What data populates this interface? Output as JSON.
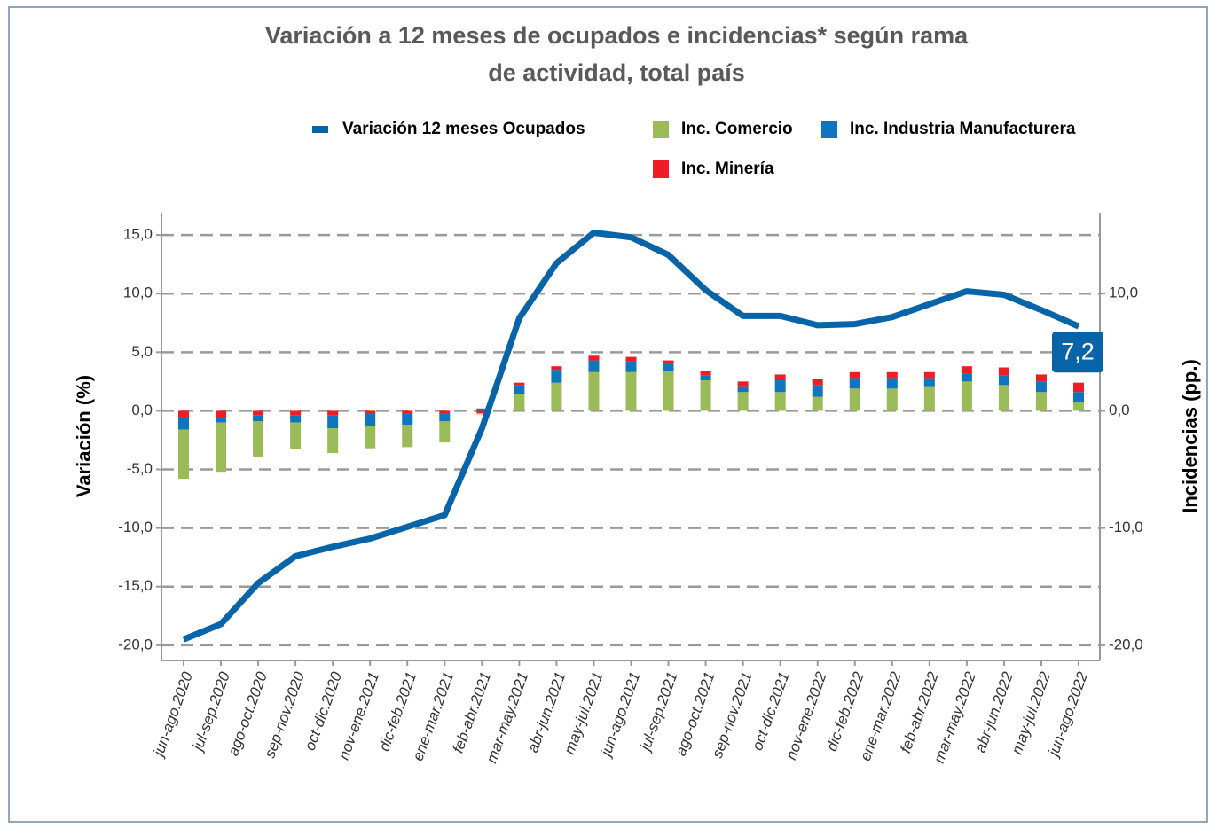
{
  "chart_data": {
    "type": "combo",
    "title": "Variación a 12 meses de ocupados e incidencias* según rama",
    "subtitle": "de actividad, total país",
    "ylabel": "Variación (%)",
    "y2label": "Incidencias (pp.)",
    "categories": [
      "jun-ago.2020",
      "jul-sep.2020",
      "ago-oct.2020",
      "sep-nov.2020",
      "oct-dic.2020",
      "nov-ene.2021",
      "dic-feb.2021",
      "ene-mar.2021",
      "feb-abr.2021",
      "mar-may.2021",
      "abr-jun.2021",
      "may-jul.2021",
      "jun-ago.2021",
      "jul-sep.2021",
      "ago-oct.2021",
      "sep-nov.2021",
      "oct-dic.2021",
      "nov-ene.2022",
      "dic-feb.2022",
      "ene-mar.2022",
      "feb-abr.2022",
      "mar-may.2022",
      "abr-jun.2022",
      "may-jul.2022",
      "jun-ago.2022"
    ],
    "series": [
      {
        "name": "Variación 12 meses Ocupados",
        "type": "line",
        "axis": "y",
        "color": "#0864a8",
        "values": [
          -19.5,
          -18.2,
          -14.7,
          -12.4,
          -11.6,
          -10.9,
          -9.9,
          -8.9,
          -1.5,
          7.9,
          12.6,
          15.2,
          14.8,
          13.3,
          10.3,
          8.1,
          8.1,
          7.3,
          7.4,
          8.0,
          9.1,
          10.2,
          9.9,
          8.6,
          7.2
        ],
        "value_labels": [
          null,
          null,
          null,
          null,
          null,
          null,
          null,
          null,
          null,
          null,
          null,
          null,
          null,
          null,
          null,
          null,
          null,
          null,
          null,
          null,
          null,
          null,
          null,
          null,
          "7,2"
        ]
      },
      {
        "name": "Inc. Comercio",
        "type": "bar",
        "axis": "y2",
        "color": "#9bbb59",
        "values": [
          -4.2,
          -4.2,
          -3.0,
          -2.3,
          -2.1,
          -1.9,
          -1.9,
          -1.8,
          -0.1,
          1.4,
          2.4,
          3.3,
          3.3,
          3.4,
          2.6,
          1.6,
          1.6,
          1.2,
          1.9,
          1.9,
          2.1,
          2.5,
          2.2,
          1.6,
          0.7
        ]
      },
      {
        "name": "Inc. Industria Manufacturera",
        "type": "bar",
        "axis": "y2",
        "color": "#0f75bc",
        "values": [
          -1.1,
          -0.5,
          -0.5,
          -0.6,
          -1.1,
          -1.1,
          -1.0,
          -0.7,
          0.2,
          0.8,
          1.1,
          1.0,
          0.9,
          0.6,
          0.4,
          0.5,
          1.0,
          1.0,
          0.9,
          0.9,
          0.7,
          0.7,
          0.8,
          0.9,
          0.9
        ]
      },
      {
        "name": "Inc. Minería",
        "type": "bar",
        "axis": "y2",
        "color": "#ee1c25",
        "values": [
          -0.5,
          -0.5,
          -0.4,
          -0.4,
          -0.4,
          -0.2,
          -0.2,
          -0.2,
          -0.2,
          0.2,
          0.3,
          0.4,
          0.4,
          0.3,
          0.4,
          0.4,
          0.5,
          0.5,
          0.5,
          0.5,
          0.5,
          0.6,
          0.7,
          0.6,
          0.8
        ]
      }
    ],
    "ylim": [
      -21.3,
      16.9
    ],
    "yticks": [
      {
        "value": -20,
        "label": "-20,0"
      },
      {
        "value": -15,
        "label": "-15,0"
      },
      {
        "value": -10,
        "label": "-10,0"
      },
      {
        "value": -5,
        "label": "-5,0"
      },
      {
        "value": 0,
        "label": "0,0"
      },
      {
        "value": 5,
        "label": "5,0"
      },
      {
        "value": 10,
        "label": "10,0"
      },
      {
        "value": 15,
        "label": "15,0"
      }
    ],
    "y2lim": [
      -21.3,
      16.9
    ],
    "y2ticks": [
      {
        "value": -20,
        "label": "-20,0"
      },
      {
        "value": -10,
        "label": "-10,0"
      },
      {
        "value": 0,
        "label": "0,0"
      },
      {
        "value": 10,
        "label": "10,0"
      }
    ],
    "grid": true
  }
}
